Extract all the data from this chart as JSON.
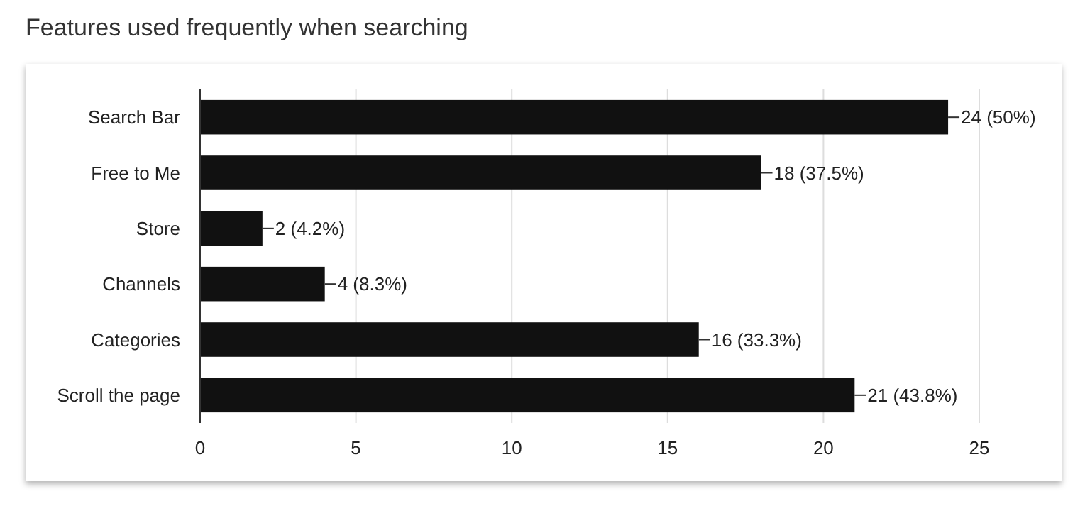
{
  "chart_data": {
    "type": "bar",
    "orientation": "horizontal",
    "title": "Features used frequently when searching",
    "categories": [
      "Search Bar",
      "Free to Me",
      "Store",
      "Channels",
      "Categories",
      "Scroll the page"
    ],
    "values": [
      24,
      18,
      2,
      4,
      16,
      21
    ],
    "color": "#111111",
    "value_labels": [
      "24 (50%)",
      "18 (37.5%)",
      "2 (4.2%)",
      "4 (8.3%)",
      "16 (33.3%)",
      "21 (43.8%)"
    ],
    "xlim": [
      0,
      25
    ],
    "xticks": [
      0,
      5,
      10,
      15,
      20,
      25
    ],
    "grid": "x"
  }
}
